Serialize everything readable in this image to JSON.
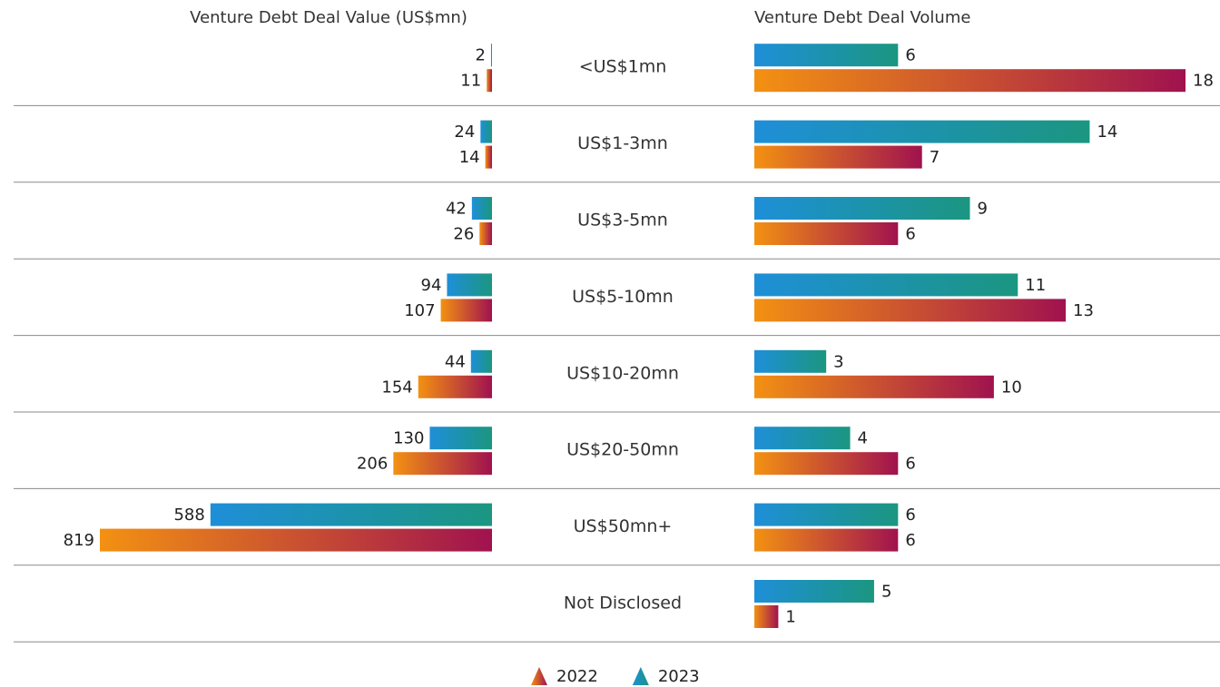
{
  "chart_data": [
    {
      "type": "hbar-left",
      "title": "Venture Debt Deal Value (US$mn)",
      "categories": [
        "<US$1mn",
        "US$1-3mn",
        "US$3-5mn",
        "US$5-10mn",
        "US$10-20mn",
        "US$20-50mn",
        "US$50mn+",
        "Not Disclosed"
      ],
      "xlim": [
        0,
        819
      ],
      "series": [
        {
          "name": "2023",
          "color": [
            "#1e8fd8",
            "#1b9680"
          ],
          "values": [
            2,
            24,
            42,
            94,
            44,
            130,
            588,
            null
          ]
        },
        {
          "name": "2022",
          "color": [
            "#f39112",
            "#a0124f"
          ],
          "values": [
            11,
            14,
            26,
            107,
            154,
            206,
            819,
            null
          ]
        }
      ]
    },
    {
      "type": "hbar-right",
      "title": "Venture Debt Deal Volume",
      "xlim": [
        0,
        18
      ],
      "series": [
        {
          "name": "2023",
          "color": [
            "#1e8fd8",
            "#1b9680"
          ],
          "values": [
            6,
            14,
            9,
            11,
            3,
            4,
            6,
            5
          ]
        },
        {
          "name": "2022",
          "color": [
            "#f39112",
            "#a0124f"
          ],
          "values": [
            18,
            7,
            6,
            13,
            10,
            6,
            6,
            1
          ]
        }
      ]
    }
  ]
}
